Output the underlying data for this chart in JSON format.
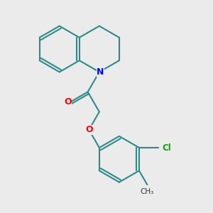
{
  "background_color": "#ebebeb",
  "bond_color": "#2d8a8a",
  "N_color": "#0000ff",
  "O_color": "#ff0000",
  "Cl_color": "#00aa00",
  "CH3_color": "#333333",
  "line_width": 1.5,
  "figsize": [
    3.0,
    3.0
  ],
  "dpi": 100,
  "xlim": [
    0,
    10
  ],
  "ylim": [
    0,
    10
  ]
}
